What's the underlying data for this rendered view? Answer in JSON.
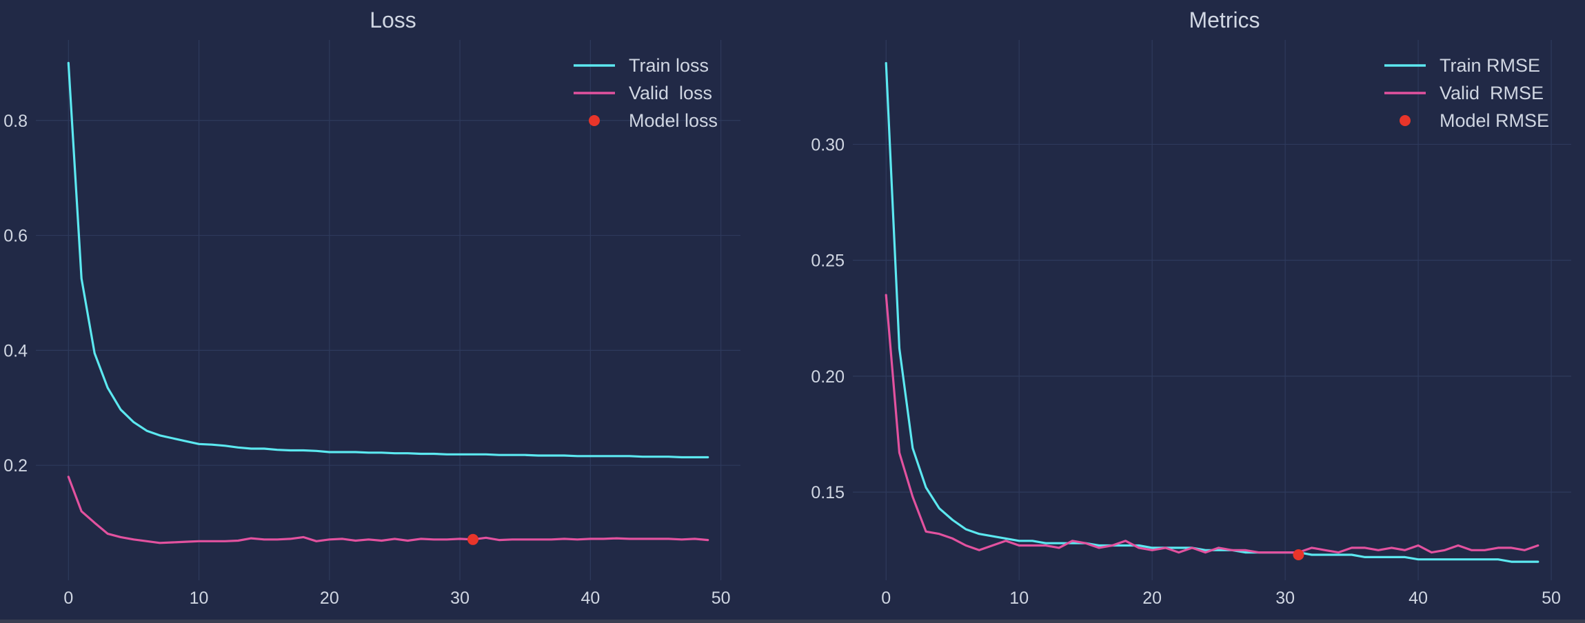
{
  "colors": {
    "background": "#212946",
    "grid": "#2e3a5c",
    "text": "#d0d6e2",
    "train": "#5ce8f0",
    "valid": "#e2529f",
    "model": "#e8352a"
  },
  "chart_data": [
    {
      "type": "line",
      "title": "Loss",
      "xlabel": "",
      "ylabel": "",
      "xlim": [
        -2.5,
        51.5
      ],
      "ylim": [
        0.0,
        0.94
      ],
      "xticks": [
        0,
        10,
        20,
        30,
        40,
        50
      ],
      "yticks": [
        0.2,
        0.4,
        0.6,
        0.8
      ],
      "ytick_labels": [
        "0.2",
        "0.4",
        "0.6",
        "0.8"
      ],
      "grid": true,
      "legend_position": "top-right",
      "series": [
        {
          "name": "Train loss",
          "kind": "line",
          "color": "#5ce8f0",
          "x": [
            0,
            1,
            2,
            3,
            4,
            5,
            6,
            7,
            8,
            9,
            10,
            11,
            12,
            13,
            14,
            15,
            16,
            17,
            18,
            19,
            20,
            21,
            22,
            23,
            24,
            25,
            26,
            27,
            28,
            29,
            30,
            31,
            32,
            33,
            34,
            35,
            36,
            37,
            38,
            39,
            40,
            41,
            42,
            43,
            44,
            45,
            46,
            47,
            48,
            49
          ],
          "values": [
            0.9,
            0.525,
            0.395,
            0.335,
            0.297,
            0.275,
            0.26,
            0.252,
            0.247,
            0.242,
            0.237,
            0.236,
            0.234,
            0.231,
            0.229,
            0.229,
            0.227,
            0.226,
            0.226,
            0.225,
            0.223,
            0.223,
            0.223,
            0.222,
            0.222,
            0.221,
            0.221,
            0.22,
            0.22,
            0.219,
            0.219,
            0.219,
            0.219,
            0.218,
            0.218,
            0.218,
            0.217,
            0.217,
            0.217,
            0.216,
            0.216,
            0.216,
            0.216,
            0.216,
            0.215,
            0.215,
            0.215,
            0.214,
            0.214,
            0.214
          ]
        },
        {
          "name": "Valid  loss",
          "kind": "line",
          "color": "#e2529f",
          "x": [
            0,
            1,
            2,
            3,
            4,
            5,
            6,
            7,
            8,
            9,
            10,
            11,
            12,
            13,
            14,
            15,
            16,
            17,
            18,
            19,
            20,
            21,
            22,
            23,
            24,
            25,
            26,
            27,
            28,
            29,
            30,
            31,
            32,
            33,
            34,
            35,
            36,
            37,
            38,
            39,
            40,
            41,
            42,
            43,
            44,
            45,
            46,
            47,
            48,
            49
          ],
          "values": [
            0.18,
            0.12,
            0.1,
            0.081,
            0.075,
            0.071,
            0.068,
            0.065,
            0.066,
            0.067,
            0.068,
            0.068,
            0.068,
            0.069,
            0.073,
            0.071,
            0.071,
            0.072,
            0.075,
            0.068,
            0.071,
            0.072,
            0.069,
            0.071,
            0.069,
            0.072,
            0.069,
            0.072,
            0.071,
            0.071,
            0.072,
            0.071,
            0.074,
            0.07,
            0.071,
            0.071,
            0.071,
            0.071,
            0.072,
            0.071,
            0.072,
            0.072,
            0.073,
            0.072,
            0.072,
            0.072,
            0.072,
            0.071,
            0.072,
            0.07
          ]
        },
        {
          "name": "Model loss",
          "kind": "point",
          "color": "#e8352a",
          "x": [
            31
          ],
          "values": [
            0.071
          ]
        }
      ]
    },
    {
      "type": "line",
      "title": "Metrics",
      "xlabel": "",
      "ylabel": "",
      "xlim": [
        -2.5,
        51.5
      ],
      "ylim": [
        0.112,
        0.345
      ],
      "xticks": [
        0,
        10,
        20,
        30,
        40,
        50
      ],
      "yticks": [
        0.15,
        0.2,
        0.25,
        0.3
      ],
      "ytick_labels": [
        "0.15",
        "0.20",
        "0.25",
        "0.30"
      ],
      "grid": true,
      "legend_position": "top-right",
      "series": [
        {
          "name": "Train RMSE",
          "kind": "line",
          "color": "#5ce8f0",
          "x": [
            0,
            1,
            2,
            3,
            4,
            5,
            6,
            7,
            8,
            9,
            10,
            11,
            12,
            13,
            14,
            15,
            16,
            17,
            18,
            19,
            20,
            21,
            22,
            23,
            24,
            25,
            26,
            27,
            28,
            29,
            30,
            31,
            32,
            33,
            34,
            35,
            36,
            37,
            38,
            39,
            40,
            41,
            42,
            43,
            44,
            45,
            46,
            47,
            48,
            49
          ],
          "values": [
            0.335,
            0.212,
            0.169,
            0.152,
            0.143,
            0.138,
            0.134,
            0.132,
            0.131,
            0.13,
            0.129,
            0.129,
            0.128,
            0.128,
            0.128,
            0.128,
            0.127,
            0.127,
            0.127,
            0.127,
            0.126,
            0.126,
            0.126,
            0.126,
            0.125,
            0.125,
            0.125,
            0.124,
            0.124,
            0.124,
            0.124,
            0.124,
            0.123,
            0.123,
            0.123,
            0.123,
            0.122,
            0.122,
            0.122,
            0.122,
            0.121,
            0.121,
            0.121,
            0.121,
            0.121,
            0.121,
            0.121,
            0.12,
            0.12,
            0.12
          ]
        },
        {
          "name": "Valid  RMSE",
          "kind": "line",
          "color": "#e2529f",
          "x": [
            0,
            1,
            2,
            3,
            4,
            5,
            6,
            7,
            8,
            9,
            10,
            11,
            12,
            13,
            14,
            15,
            16,
            17,
            18,
            19,
            20,
            21,
            22,
            23,
            24,
            25,
            26,
            27,
            28,
            29,
            30,
            31,
            32,
            33,
            34,
            35,
            36,
            37,
            38,
            39,
            40,
            41,
            42,
            43,
            44,
            45,
            46,
            47,
            48,
            49
          ],
          "values": [
            0.235,
            0.167,
            0.148,
            0.133,
            0.132,
            0.13,
            0.127,
            0.125,
            0.127,
            0.129,
            0.127,
            0.127,
            0.127,
            0.126,
            0.129,
            0.128,
            0.126,
            0.127,
            0.129,
            0.126,
            0.125,
            0.126,
            0.124,
            0.126,
            0.124,
            0.126,
            0.125,
            0.125,
            0.124,
            0.124,
            0.124,
            0.124,
            0.126,
            0.125,
            0.124,
            0.126,
            0.126,
            0.125,
            0.126,
            0.125,
            0.127,
            0.124,
            0.125,
            0.127,
            0.125,
            0.125,
            0.126,
            0.126,
            0.125,
            0.127
          ]
        },
        {
          "name": "Model RMSE",
          "kind": "point",
          "color": "#e8352a",
          "x": [
            31
          ],
          "values": [
            0.123
          ]
        }
      ]
    }
  ]
}
